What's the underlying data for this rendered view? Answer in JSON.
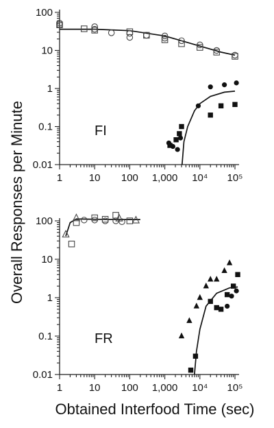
{
  "chart_data": [
    {
      "type": "scatter",
      "panel_label": "FI",
      "xscale": "log",
      "yscale": "log",
      "xlim": [
        1,
        100000
      ],
      "ylim": [
        0.01,
        100
      ],
      "xticks": [
        "1",
        "10",
        "100",
        "1,000",
        "10⁴",
        "10⁵"
      ],
      "yticks": [
        "0.01",
        "0.1",
        "1",
        "10",
        "100"
      ],
      "series": [
        {
          "marker": "open-circle",
          "points": [
            [
              1,
              52
            ],
            [
              1,
              47
            ],
            [
              10,
              42
            ],
            [
              10,
              36
            ],
            [
              30,
              29
            ],
            [
              100,
              28
            ],
            [
              100,
              22
            ],
            [
              300,
              25
            ],
            [
              1000,
              24
            ],
            [
              1000,
              21
            ],
            [
              3000,
              18
            ],
            [
              10000,
              14
            ],
            [
              30000,
              10
            ],
            [
              100000,
              7.5
            ]
          ]
        },
        {
          "marker": "open-square",
          "points": [
            [
              1,
              47
            ],
            [
              5,
              37
            ],
            [
              10,
              34
            ],
            [
              100,
              31
            ],
            [
              300,
              25
            ],
            [
              1000,
              19
            ],
            [
              3000,
              15
            ],
            [
              10000,
              12
            ],
            [
              30000,
              9
            ],
            [
              100000,
              7
            ]
          ]
        },
        {
          "marker": "filled-circle",
          "points": [
            [
              1300,
              0.037
            ],
            [
              1700,
              0.03
            ],
            [
              2300,
              0.025
            ],
            [
              2800,
              0.05
            ],
            [
              9000,
              0.35
            ],
            [
              20000,
              1.1
            ],
            [
              50000,
              1.25
            ],
            [
              110000,
              1.4
            ]
          ]
        },
        {
          "marker": "filled-square",
          "points": [
            [
              1400,
              0.032
            ],
            [
              2100,
              0.045
            ],
            [
              2600,
              0.065
            ],
            [
              3000,
              0.1
            ],
            [
              20000,
              0.2
            ],
            [
              40000,
              0.35
            ],
            [
              100000,
              0.38
            ]
          ]
        }
      ],
      "fit_lines": [
        {
          "points": [
            [
              1,
              36
            ],
            [
              10,
              36
            ],
            [
              100,
              33
            ],
            [
              1000,
              24
            ],
            [
              10000,
              13
            ],
            [
              40000,
              9
            ],
            [
              100000,
              7.5
            ]
          ]
        },
        {
          "points": [
            [
              3100,
              0.01
            ],
            [
              3500,
              0.04
            ],
            [
              4500,
              0.1
            ],
            [
              7000,
              0.26
            ],
            [
              10000,
              0.4
            ],
            [
              20000,
              0.62
            ],
            [
              50000,
              0.8
            ],
            [
              100000,
              0.85
            ]
          ]
        }
      ]
    },
    {
      "type": "scatter",
      "panel_label": "FR",
      "xscale": "log",
      "yscale": "log",
      "xlim": [
        1,
        100000
      ],
      "ylim": [
        0.01,
        100
      ],
      "xticks": [
        "1",
        "10",
        "100",
        "1,000",
        "10⁴",
        "10⁵"
      ],
      "yticks": [
        "0.01",
        "0.1",
        "1",
        "10",
        "100"
      ],
      "series": [
        {
          "marker": "open-triangle",
          "points": [
            [
              1.5,
              45
            ],
            [
              3,
              120
            ],
            [
              50,
              118
            ],
            [
              150,
              105
            ]
          ]
        },
        {
          "marker": "open-square",
          "points": [
            [
              2.2,
              25
            ],
            [
              3,
              90
            ],
            [
              10,
              120
            ],
            [
              20,
              110
            ],
            [
              40,
              140
            ],
            [
              100,
              100
            ]
          ]
        },
        {
          "marker": "open-circle",
          "points": [
            [
              5,
              105
            ],
            [
              10,
              105
            ],
            [
              20,
              100
            ],
            [
              40,
              100
            ],
            [
              60,
              95
            ]
          ]
        },
        {
          "marker": "filled-triangle",
          "points": [
            [
              3000,
              0.1
            ],
            [
              5000,
              0.25
            ],
            [
              8000,
              0.6
            ],
            [
              10000,
              1
            ],
            [
              15000,
              2
            ],
            [
              20000,
              3
            ],
            [
              30000,
              3
            ],
            [
              50000,
              5
            ],
            [
              70000,
              8
            ]
          ]
        },
        {
          "marker": "filled-square",
          "points": [
            [
              5500,
              0.013
            ],
            [
              7500,
              0.03
            ],
            [
              20000,
              0.8
            ],
            [
              30000,
              0.55
            ],
            [
              40000,
              0.5
            ],
            [
              60000,
              1.2
            ],
            [
              90000,
              2
            ],
            [
              120000,
              4
            ]
          ]
        },
        {
          "marker": "filled-circle",
          "points": [
            [
              60000,
              0.6
            ],
            [
              80000,
              1.1
            ],
            [
              110000,
              1.5
            ]
          ]
        }
      ],
      "fit_lines": [
        {
          "points": [
            [
              1.5,
              40
            ],
            [
              2,
              90
            ],
            [
              3,
              112
            ],
            [
              10,
              110
            ],
            [
              100,
              108
            ],
            [
              200,
              108
            ]
          ]
        },
        {
          "points": [
            [
              7000,
              0.01
            ],
            [
              8000,
              0.04
            ],
            [
              10000,
              0.15
            ],
            [
              15000,
              0.6
            ],
            [
              30000,
              1.3
            ],
            [
              70000,
              1.8
            ],
            [
              120000,
              1.9
            ]
          ]
        }
      ]
    }
  ],
  "ylabel": "Overall Responses per Minute",
  "xlabel": "Obtained Interfood Time (sec)"
}
